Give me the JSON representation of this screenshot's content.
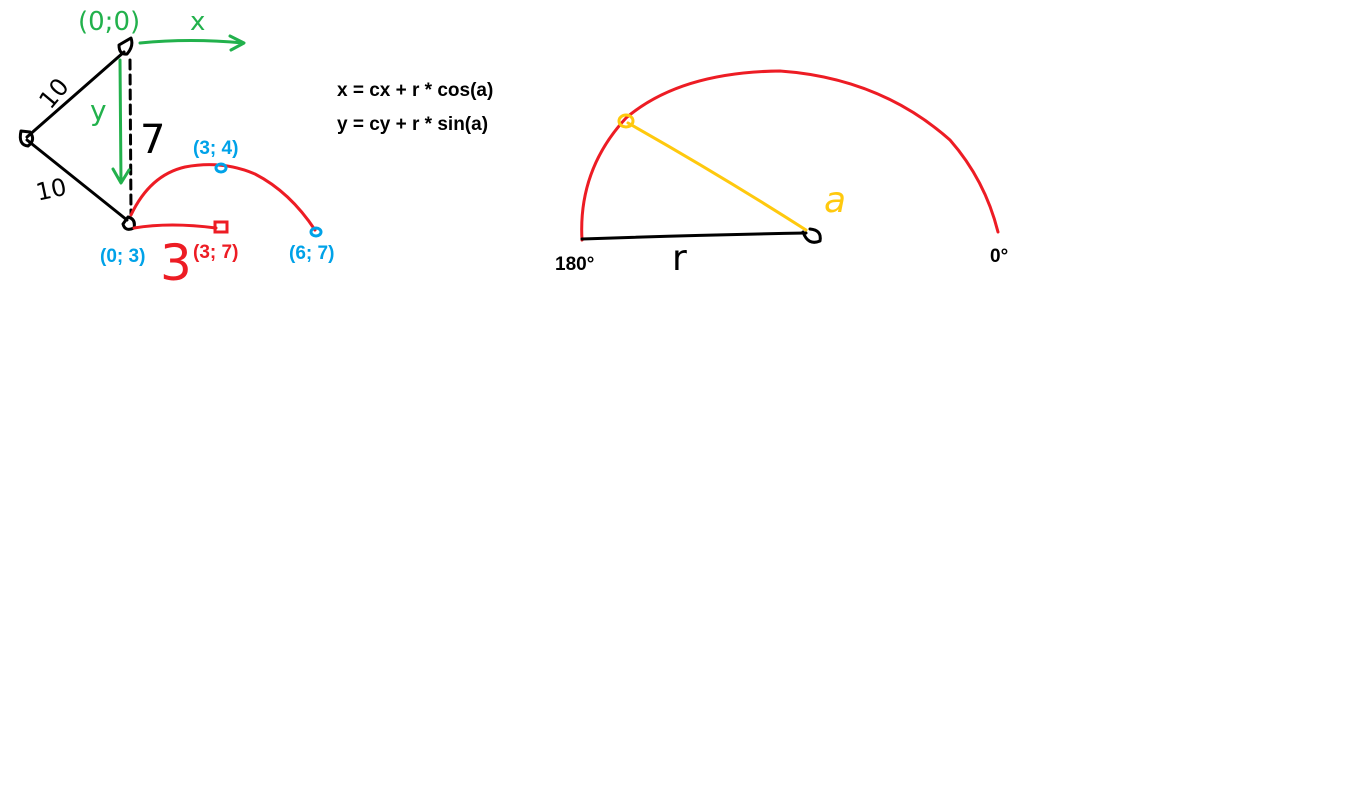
{
  "colors": {
    "black": "#000000",
    "green": "#22b14c",
    "red": "#ed1c24",
    "blue": "#00a2e8",
    "yellow": "#ffc90e"
  },
  "left_diagram": {
    "origin_label": "(0;0)",
    "x_axis_label": "x",
    "y_axis_label": "y",
    "upper_side_label": "10",
    "lower_side_label": "10",
    "vertical_distance_label": "7",
    "offset_label": "3",
    "points": {
      "start": "(0; 3)",
      "apex": "(3; 4)",
      "center": "(3; 7)",
      "end": "(6; 7)"
    }
  },
  "formulas": {
    "x": "x = cx + r * cos(a)",
    "y": "y = cy + r * sin(a)"
  },
  "right_diagram": {
    "angle_left": "180°",
    "angle_right": "0°",
    "radius_label": "r",
    "angle_symbol": "a"
  }
}
